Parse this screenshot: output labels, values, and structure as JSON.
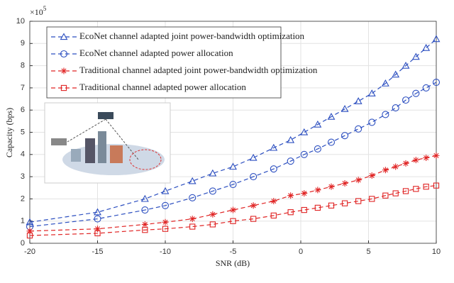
{
  "chart_data": {
    "type": "line",
    "x_label": "SNR (dB)",
    "y_label": "Capacity (bps)",
    "y_multiplier": "×10",
    "y_multiplier_exponent": "5",
    "xlim": [
      -20,
      10
    ],
    "ylim": [
      0,
      10
    ],
    "xticks": [
      -20,
      -15,
      -10,
      -5,
      0,
      5,
      10
    ],
    "yticks": [
      0,
      1,
      2,
      3,
      4,
      5,
      6,
      7,
      8,
      9,
      10
    ],
    "grid": true,
    "legend": "upper left",
    "x": [
      -20,
      -15,
      -11.5,
      -10,
      -8,
      -6.5,
      -5,
      -3.5,
      -2,
      -0.75,
      0.25,
      1.25,
      2.25,
      3.25,
      4.25,
      5.25,
      6.25,
      7,
      7.75,
      8.5,
      9.25,
      10
    ],
    "series": [
      {
        "name": "EcoNet channel adapted joint power-bandwidth optimization",
        "color": "#2c4fc0",
        "marker": "triangle",
        "values": [
          0.95,
          1.4,
          2.0,
          2.35,
          2.8,
          3.15,
          3.45,
          3.85,
          4.3,
          4.65,
          5.0,
          5.35,
          5.7,
          6.05,
          6.4,
          6.75,
          7.2,
          7.6,
          8.0,
          8.4,
          8.8,
          9.2
        ]
      },
      {
        "name": "EcoNet channel adapted power allocation",
        "color": "#2c4fc0",
        "marker": "circle",
        "values": [
          0.75,
          1.1,
          1.5,
          1.7,
          2.05,
          2.35,
          2.65,
          3.0,
          3.35,
          3.7,
          4.0,
          4.25,
          4.55,
          4.85,
          5.15,
          5.45,
          5.8,
          6.1,
          6.45,
          6.75,
          7.0,
          7.25
        ]
      },
      {
        "name": "Traditional channel adapted joint power-bandwidth optimization",
        "color": "#e02424",
        "marker": "star",
        "values": [
          0.55,
          0.65,
          0.85,
          0.95,
          1.1,
          1.3,
          1.5,
          1.7,
          1.9,
          2.15,
          2.25,
          2.4,
          2.55,
          2.7,
          2.85,
          3.05,
          3.3,
          3.45,
          3.6,
          3.75,
          3.85,
          3.95
        ]
      },
      {
        "name": "Traditional channel adapted power allocation",
        "color": "#e02424",
        "marker": "square",
        "values": [
          0.35,
          0.45,
          0.6,
          0.65,
          0.75,
          0.85,
          1.0,
          1.1,
          1.25,
          1.4,
          1.5,
          1.6,
          1.7,
          1.8,
          1.9,
          2.0,
          2.15,
          2.25,
          2.35,
          2.45,
          2.55,
          2.6
        ]
      }
    ]
  }
}
